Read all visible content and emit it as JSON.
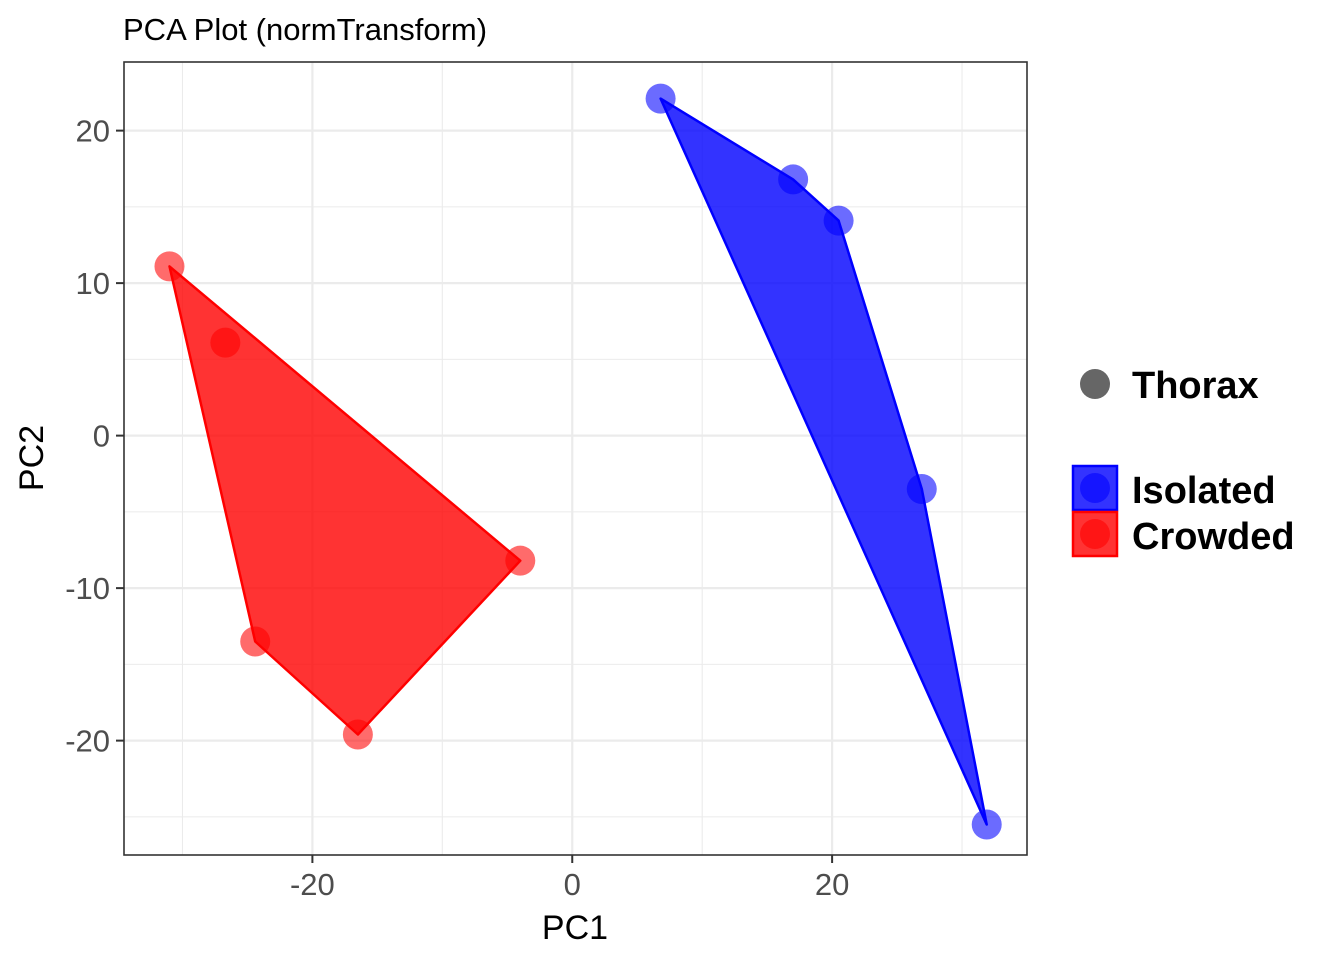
{
  "chart_data": {
    "type": "scatter",
    "title": "PCA Plot (normTransform)",
    "xlabel": "PC1",
    "ylabel": "PC2",
    "xlim": [
      -34.5,
      35
    ],
    "ylim": [
      -27.5,
      24.5
    ],
    "xticks": [
      -20,
      0,
      20
    ],
    "yticks": [
      -20,
      -10,
      0,
      10,
      20
    ],
    "grid": true,
    "legend_position": "right",
    "shape_legend": {
      "label": "Thorax",
      "color": "#666666"
    },
    "series": [
      {
        "name": "Isolated",
        "color": "#0000ff",
        "points": [
          {
            "x": 6.8,
            "y": 22.1
          },
          {
            "x": 17.0,
            "y": 16.8
          },
          {
            "x": 20.5,
            "y": 14.1
          },
          {
            "x": 26.9,
            "y": -3.5
          },
          {
            "x": 31.9,
            "y": -25.5
          }
        ],
        "hull": [
          [
            6.8,
            22.1
          ],
          [
            17.0,
            16.8
          ],
          [
            20.5,
            14.1
          ],
          [
            26.9,
            -3.5
          ],
          [
            31.9,
            -25.5
          ]
        ]
      },
      {
        "name": "Crowded",
        "color": "#ff0000",
        "points": [
          {
            "x": -31.0,
            "y": 11.1
          },
          {
            "x": -26.7,
            "y": 6.1
          },
          {
            "x": -4.0,
            "y": -8.2
          },
          {
            "x": -24.4,
            "y": -13.5
          },
          {
            "x": -16.5,
            "y": -19.6
          }
        ],
        "hull": [
          [
            -31.0,
            11.1
          ],
          [
            -4.0,
            -8.2
          ],
          [
            -16.5,
            -19.6
          ],
          [
            -24.4,
            -13.5
          ]
        ]
      }
    ]
  }
}
